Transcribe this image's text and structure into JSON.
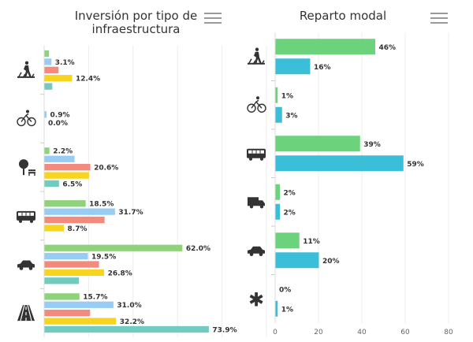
{
  "left_panel": {
    "title": "Inversión por tipo de infraestructura"
  },
  "right_panel": {
    "title": "Reparto modal"
  },
  "chart_data": [
    {
      "type": "bar",
      "orientation": "horizontal",
      "title": "Inversión por tipo de infraestructura",
      "categories": [
        "walk-icon",
        "bike-icon",
        "public-space-icon",
        "bus-icon",
        "car-icon",
        "road-icon"
      ],
      "bars": [
        [
          {
            "v": 2.0,
            "c": "#8fd27b"
          },
          {
            "v": 3.1,
            "c": "#99ccf2",
            "label": "3.1%"
          },
          {
            "v": 6.3,
            "c": "#f28b7d"
          },
          {
            "v": 12.4,
            "c": "#f6d41f",
            "label": "12.4%"
          },
          {
            "v": 3.5,
            "c": "#72cbc0"
          }
        ],
        [
          {
            "v": 0.9,
            "c": "#99ccf2",
            "label": "0.9%"
          },
          {
            "v": 0.0,
            "c": "#f6d41f",
            "label": "0.0%"
          }
        ],
        [
          {
            "v": 2.2,
            "c": "#8fd27b",
            "label": "2.2%"
          },
          {
            "v": 13.5,
            "c": "#99ccf2"
          },
          {
            "v": 20.6,
            "c": "#f28b7d",
            "label": "20.6%"
          },
          {
            "v": 20.0,
            "c": "#f6d41f"
          },
          {
            "v": 6.5,
            "c": "#72cbc0",
            "label": "6.5%"
          }
        ],
        [
          {
            "v": 18.5,
            "c": "#8fd27b",
            "label": "18.5%"
          },
          {
            "v": 31.7,
            "c": "#99ccf2",
            "label": "31.7%"
          },
          {
            "v": 27.0,
            "c": "#f28b7d"
          },
          {
            "v": 8.7,
            "c": "#f6d41f",
            "label": "8.7%"
          }
        ],
        [
          {
            "v": 62.0,
            "c": "#8fd27b",
            "label": "62.0%"
          },
          {
            "v": 19.5,
            "c": "#99ccf2",
            "label": "19.5%"
          },
          {
            "v": 24.5,
            "c": "#f28b7d"
          },
          {
            "v": 26.8,
            "c": "#f6d41f",
            "label": "26.8%"
          },
          {
            "v": 15.5,
            "c": "#72cbc0"
          }
        ],
        [
          {
            "v": 15.7,
            "c": "#8fd27b",
            "label": "15.7%"
          },
          {
            "v": 31.0,
            "c": "#99ccf2",
            "label": "31.0%"
          },
          {
            "v": 20.5,
            "c": "#f28b7d"
          },
          {
            "v": 32.2,
            "c": "#f6d41f",
            "label": "32.2%"
          },
          {
            "v": 73.9,
            "c": "#72cbc0",
            "label": "73.9%"
          }
        ]
      ],
      "xlim": [
        0,
        100
      ]
    },
    {
      "type": "bar",
      "orientation": "horizontal",
      "title": "Reparto modal",
      "categories": [
        "walk-icon",
        "bike-icon",
        "bus-icon",
        "truck-icon",
        "car-icon",
        "other-icon"
      ],
      "series_colors": [
        "#6cd37c",
        "#3bbfd8"
      ],
      "values": [
        [
          46,
          16
        ],
        [
          1,
          3
        ],
        [
          39,
          59
        ],
        [
          2,
          2
        ],
        [
          11,
          20
        ],
        [
          0,
          1
        ]
      ],
      "labels": [
        [
          "46%",
          "16%"
        ],
        [
          "1%",
          "3%"
        ],
        [
          "39%",
          "59%"
        ],
        [
          "2%",
          "2%"
        ],
        [
          "11%",
          "20%"
        ],
        [
          "0%",
          "1%"
        ]
      ],
      "xlim": [
        0,
        80
      ],
      "xticks": [
        "0",
        "20",
        "40",
        "60",
        "80"
      ]
    }
  ]
}
